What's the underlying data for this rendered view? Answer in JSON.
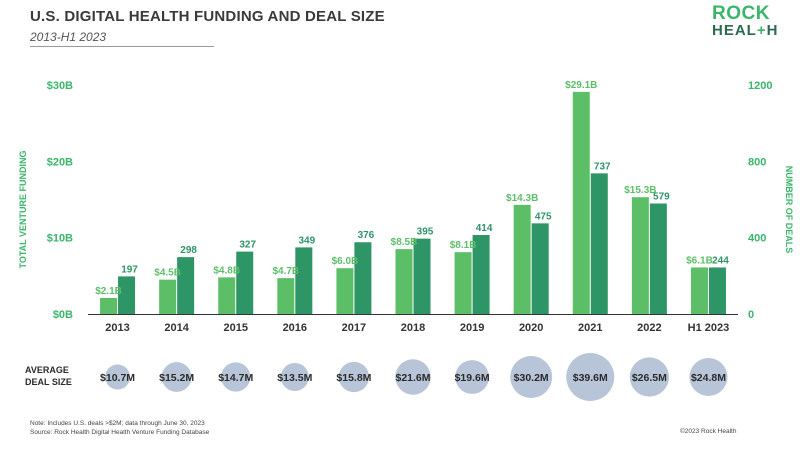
{
  "header": {
    "title": "U.S. DIGITAL HEALTH FUNDING AND DEAL SIZE",
    "subtitle": "2013-H1 2023",
    "logo_line1": "ROCK",
    "logo_line2_a": "HEAL",
    "logo_line2_plus": "+",
    "logo_line2_b": "H"
  },
  "footer": {
    "note": "Note: Includes U.S. deals >$2M; data through June 30, 2023",
    "source": "Source: Rock Health Digital Health Venture Funding Database",
    "copyright": "©2023 Rock Health"
  },
  "colors": {
    "funding": "#5cbf68",
    "deals": "#2e9566",
    "bubble": "#b8c4d8",
    "axis_text": "#3bb56a"
  },
  "chart_data": {
    "type": "bar",
    "categories": [
      "2013",
      "2014",
      "2015",
      "2016",
      "2017",
      "2018",
      "2019",
      "2020",
      "2021",
      "2022",
      "H1 2023"
    ],
    "series": [
      {
        "name": "",
        "axis": "left",
        "values": [
          2.1,
          4.5,
          4.8,
          4.7,
          6.0,
          8.5,
          8.1,
          14.3,
          29.1,
          15.3,
          6.1
        ],
        "labels": [
          "$2.1B",
          "$4.5B",
          "$4.8B",
          "$4.7B",
          "$6.0B",
          "$8.5B",
          "$8.1B",
          "$14.3B",
          "$29.1B",
          "$15.3B",
          "$6.1B"
        ]
      },
      {
        "name": "",
        "axis": "right",
        "values": [
          197,
          298,
          327,
          349,
          376,
          395,
          414,
          475,
          737,
          579,
          244
        ],
        "labels": [
          "197",
          "298",
          "327",
          "349",
          "376",
          "395",
          "414",
          "475",
          "737",
          "579",
          "244"
        ]
      }
    ],
    "left_axis": {
      "label": "TOTAL VENTURE FUNDING",
      "ylim": [
        0,
        30
      ],
      "ticks": [
        "$0B",
        "$10B",
        "$20B",
        "$30B"
      ]
    },
    "right_axis": {
      "label": "NUMBER OF DEALS",
      "ylim": [
        0,
        1200
      ],
      "ticks": [
        "0",
        "400",
        "800",
        "1200"
      ]
    },
    "average_deal_size": {
      "label_line1": "AVERAGE",
      "label_line2": "DEAL SIZE",
      "values": [
        10.7,
        15.2,
        14.7,
        13.5,
        15.8,
        21.6,
        19.6,
        30.2,
        39.6,
        26.5,
        24.8
      ],
      "labels": [
        "$10.7M",
        "$15.2M",
        "$14.7M",
        "$13.5M",
        "$15.8M",
        "$21.6M",
        "$19.6M",
        "$30.2M",
        "$39.6M",
        "$26.5M",
        "$24.8M"
      ]
    },
    "grid": false
  }
}
